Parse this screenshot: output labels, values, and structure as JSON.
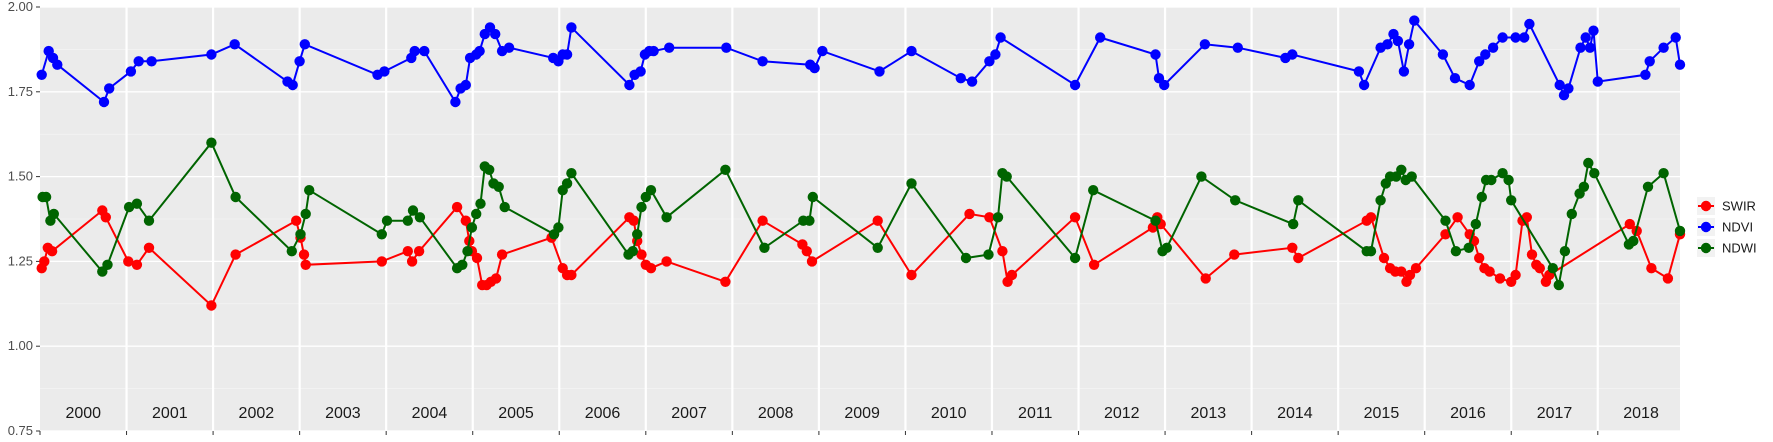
{
  "chart_data": {
    "type": "line",
    "title": "",
    "xlabel": "",
    "ylabel": "",
    "xlim": [
      2000.0,
      2018.95
    ],
    "ylim": [
      0.75,
      2.0
    ],
    "yticks": [
      "0.75",
      "1.00",
      "1.25",
      "1.50",
      "1.75",
      "2.00"
    ],
    "year_labels": [
      "2000",
      "2001",
      "2002",
      "2003",
      "2004",
      "2005",
      "2006",
      "2007",
      "2008",
      "2009",
      "2010",
      "2011",
      "2012",
      "2013",
      "2014",
      "2015",
      "2016",
      "2017",
      "2018"
    ],
    "grid": true,
    "legend_position": "right",
    "series": [
      {
        "name": "SWIR",
        "color": "#ff0000",
        "points": [
          [
            2000.02,
            1.23
          ],
          [
            2000.05,
            1.25
          ],
          [
            2000.09,
            1.29
          ],
          [
            2000.14,
            1.28
          ],
          [
            2000.72,
            1.4
          ],
          [
            2000.76,
            1.38
          ],
          [
            2001.02,
            1.25
          ],
          [
            2001.12,
            1.24
          ],
          [
            2001.26,
            1.29
          ],
          [
            2001.98,
            1.12
          ],
          [
            2002.26,
            1.27
          ],
          [
            2002.96,
            1.37
          ],
          [
            2003.01,
            1.32
          ],
          [
            2003.05,
            1.27
          ],
          [
            2003.07,
            1.24
          ],
          [
            2003.95,
            1.25
          ],
          [
            2004.25,
            1.28
          ],
          [
            2004.3,
            1.25
          ],
          [
            2004.38,
            1.28
          ],
          [
            2004.82,
            1.41
          ],
          [
            2004.92,
            1.37
          ],
          [
            2004.96,
            1.31
          ],
          [
            2004.99,
            1.28
          ],
          [
            2005.05,
            1.26
          ],
          [
            2005.11,
            1.18
          ],
          [
            2005.16,
            1.18
          ],
          [
            2005.21,
            1.19
          ],
          [
            2005.27,
            1.2
          ],
          [
            2005.34,
            1.27
          ],
          [
            2005.91,
            1.32
          ],
          [
            2006.04,
            1.23
          ],
          [
            2006.09,
            1.21
          ],
          [
            2006.14,
            1.21
          ],
          [
            2006.81,
            1.38
          ],
          [
            2006.86,
            1.37
          ],
          [
            2006.9,
            1.31
          ],
          [
            2006.95,
            1.27
          ],
          [
            2007.0,
            1.24
          ],
          [
            2007.06,
            1.23
          ],
          [
            2007.24,
            1.25
          ],
          [
            2007.92,
            1.19
          ],
          [
            2008.35,
            1.37
          ],
          [
            2008.81,
            1.3
          ],
          [
            2008.86,
            1.28
          ],
          [
            2008.92,
            1.25
          ],
          [
            2009.68,
            1.37
          ],
          [
            2010.07,
            1.21
          ],
          [
            2010.74,
            1.39
          ],
          [
            2010.97,
            1.38
          ],
          [
            2011.12,
            1.28
          ],
          [
            2011.18,
            1.19
          ],
          [
            2011.23,
            1.21
          ],
          [
            2011.96,
            1.38
          ],
          [
            2012.18,
            1.24
          ],
          [
            2012.86,
            1.35
          ],
          [
            2012.91,
            1.38
          ],
          [
            2012.95,
            1.36
          ],
          [
            2013.47,
            1.2
          ],
          [
            2013.8,
            1.27
          ],
          [
            2014.47,
            1.29
          ],
          [
            2014.54,
            1.26
          ],
          [
            2015.33,
            1.37
          ],
          [
            2015.38,
            1.38
          ],
          [
            2015.53,
            1.26
          ],
          [
            2015.6,
            1.23
          ],
          [
            2015.66,
            1.22
          ],
          [
            2015.73,
            1.22
          ],
          [
            2015.79,
            1.19
          ],
          [
            2015.83,
            1.21
          ],
          [
            2015.9,
            1.23
          ],
          [
            2016.24,
            1.33
          ],
          [
            2016.38,
            1.38
          ],
          [
            2016.52,
            1.33
          ],
          [
            2016.57,
            1.31
          ],
          [
            2016.63,
            1.26
          ],
          [
            2016.69,
            1.23
          ],
          [
            2016.75,
            1.22
          ],
          [
            2016.87,
            1.2
          ],
          [
            2017.0,
            1.19
          ],
          [
            2017.05,
            1.21
          ],
          [
            2017.13,
            1.37
          ],
          [
            2017.18,
            1.38
          ],
          [
            2017.24,
            1.27
          ],
          [
            2017.29,
            1.24
          ],
          [
            2017.33,
            1.23
          ],
          [
            2017.4,
            1.19
          ],
          [
            2017.44,
            1.21
          ],
          [
            2018.37,
            1.36
          ],
          [
            2018.45,
            1.34
          ],
          [
            2018.62,
            1.23
          ],
          [
            2018.81,
            1.2
          ],
          [
            2019.0,
            1.33
          ]
        ]
      },
      {
        "name": "NDVI",
        "color": "#0000ff",
        "points": [
          [
            2000.02,
            1.8
          ],
          [
            2000.1,
            1.87
          ],
          [
            2000.15,
            1.85
          ],
          [
            2000.2,
            1.83
          ],
          [
            2000.74,
            1.72
          ],
          [
            2000.8,
            1.76
          ],
          [
            2001.05,
            1.81
          ],
          [
            2001.14,
            1.84
          ],
          [
            2001.29,
            1.84
          ],
          [
            2001.98,
            1.86
          ],
          [
            2002.25,
            1.89
          ],
          [
            2002.86,
            1.78
          ],
          [
            2002.92,
            1.77
          ],
          [
            2003.0,
            1.84
          ],
          [
            2003.06,
            1.89
          ],
          [
            2003.9,
            1.8
          ],
          [
            2003.98,
            1.81
          ],
          [
            2004.29,
            1.85
          ],
          [
            2004.33,
            1.87
          ],
          [
            2004.44,
            1.87
          ],
          [
            2004.8,
            1.72
          ],
          [
            2004.86,
            1.76
          ],
          [
            2004.92,
            1.77
          ],
          [
            2004.97,
            1.85
          ],
          [
            2005.04,
            1.86
          ],
          [
            2005.08,
            1.87
          ],
          [
            2005.14,
            1.92
          ],
          [
            2005.2,
            1.94
          ],
          [
            2005.26,
            1.92
          ],
          [
            2005.34,
            1.87
          ],
          [
            2005.42,
            1.88
          ],
          [
            2005.93,
            1.85
          ],
          [
            2005.99,
            1.84
          ],
          [
            2006.04,
            1.86
          ],
          [
            2006.09,
            1.86
          ],
          [
            2006.14,
            1.94
          ],
          [
            2006.81,
            1.77
          ],
          [
            2006.87,
            1.8
          ],
          [
            2006.94,
            1.81
          ],
          [
            2006.99,
            1.86
          ],
          [
            2007.04,
            1.87
          ],
          [
            2007.09,
            1.87
          ],
          [
            2007.27,
            1.88
          ],
          [
            2007.93,
            1.88
          ],
          [
            2008.35,
            1.84
          ],
          [
            2008.9,
            1.83
          ],
          [
            2008.95,
            1.82
          ],
          [
            2009.04,
            1.87
          ],
          [
            2009.7,
            1.81
          ],
          [
            2010.07,
            1.87
          ],
          [
            2010.64,
            1.79
          ],
          [
            2010.77,
            1.78
          ],
          [
            2010.97,
            1.84
          ],
          [
            2011.04,
            1.86
          ],
          [
            2011.1,
            1.91
          ],
          [
            2011.96,
            1.77
          ],
          [
            2012.25,
            1.91
          ],
          [
            2012.89,
            1.86
          ],
          [
            2012.93,
            1.79
          ],
          [
            2012.99,
            1.77
          ],
          [
            2013.46,
            1.89
          ],
          [
            2013.84,
            1.88
          ],
          [
            2014.39,
            1.85
          ],
          [
            2014.47,
            1.86
          ],
          [
            2015.24,
            1.81
          ],
          [
            2015.3,
            1.77
          ],
          [
            2015.49,
            1.88
          ],
          [
            2015.57,
            1.89
          ],
          [
            2015.64,
            1.92
          ],
          [
            2015.69,
            1.9
          ],
          [
            2015.76,
            1.81
          ],
          [
            2015.82,
            1.89
          ],
          [
            2015.88,
            1.96
          ],
          [
            2016.21,
            1.86
          ],
          [
            2016.35,
            1.79
          ],
          [
            2016.52,
            1.77
          ],
          [
            2016.63,
            1.84
          ],
          [
            2016.7,
            1.86
          ],
          [
            2016.79,
            1.88
          ],
          [
            2016.9,
            1.91
          ],
          [
            2017.05,
            1.91
          ],
          [
            2017.15,
            1.91
          ],
          [
            2017.21,
            1.95
          ],
          [
            2017.56,
            1.77
          ],
          [
            2017.61,
            1.74
          ],
          [
            2017.66,
            1.76
          ],
          [
            2017.8,
            1.88
          ],
          [
            2017.86,
            1.91
          ],
          [
            2017.91,
            1.88
          ],
          [
            2017.95,
            1.93
          ],
          [
            2018.0,
            1.78
          ],
          [
            2018.55,
            1.8
          ],
          [
            2018.6,
            1.84
          ],
          [
            2018.76,
            1.88
          ],
          [
            2018.9,
            1.91
          ],
          [
            2019.0,
            1.83
          ]
        ]
      },
      {
        "name": "NDWI",
        "color": "#006400",
        "points": [
          [
            2000.03,
            1.44
          ],
          [
            2000.07,
            1.44
          ],
          [
            2000.12,
            1.37
          ],
          [
            2000.16,
            1.39
          ],
          [
            2000.72,
            1.22
          ],
          [
            2000.78,
            1.24
          ],
          [
            2001.03,
            1.41
          ],
          [
            2001.12,
            1.42
          ],
          [
            2001.26,
            1.37
          ],
          [
            2001.98,
            1.6
          ],
          [
            2002.26,
            1.44
          ],
          [
            2002.91,
            1.28
          ],
          [
            2003.01,
            1.33
          ],
          [
            2003.07,
            1.39
          ],
          [
            2003.11,
            1.46
          ],
          [
            2003.95,
            1.33
          ],
          [
            2004.01,
            1.37
          ],
          [
            2004.25,
            1.37
          ],
          [
            2004.31,
            1.4
          ],
          [
            2004.39,
            1.38
          ],
          [
            2004.82,
            1.23
          ],
          [
            2004.88,
            1.24
          ],
          [
            2004.94,
            1.28
          ],
          [
            2004.99,
            1.35
          ],
          [
            2005.04,
            1.39
          ],
          [
            2005.09,
            1.42
          ],
          [
            2005.14,
            1.53
          ],
          [
            2005.19,
            1.52
          ],
          [
            2005.24,
            1.48
          ],
          [
            2005.3,
            1.47
          ],
          [
            2005.37,
            1.41
          ],
          [
            2005.94,
            1.33
          ],
          [
            2005.99,
            1.35
          ],
          [
            2006.04,
            1.46
          ],
          [
            2006.09,
            1.48
          ],
          [
            2006.14,
            1.51
          ],
          [
            2006.8,
            1.27
          ],
          [
            2006.85,
            1.28
          ],
          [
            2006.9,
            1.33
          ],
          [
            2006.95,
            1.41
          ],
          [
            2007.0,
            1.44
          ],
          [
            2007.06,
            1.46
          ],
          [
            2007.24,
            1.38
          ],
          [
            2007.92,
            1.52
          ],
          [
            2008.37,
            1.29
          ],
          [
            2008.82,
            1.37
          ],
          [
            2008.89,
            1.37
          ],
          [
            2008.93,
            1.44
          ],
          [
            2009.68,
            1.29
          ],
          [
            2010.07,
            1.48
          ],
          [
            2010.7,
            1.26
          ],
          [
            2010.96,
            1.27
          ],
          [
            2011.07,
            1.38
          ],
          [
            2011.12,
            1.51
          ],
          [
            2011.17,
            1.5
          ],
          [
            2011.96,
            1.26
          ],
          [
            2012.17,
            1.46
          ],
          [
            2012.89,
            1.37
          ],
          [
            2012.97,
            1.28
          ],
          [
            2013.02,
            1.29
          ],
          [
            2013.42,
            1.5
          ],
          [
            2013.81,
            1.43
          ],
          [
            2014.48,
            1.36
          ],
          [
            2014.54,
            1.43
          ],
          [
            2015.33,
            1.28
          ],
          [
            2015.38,
            1.28
          ],
          [
            2015.49,
            1.43
          ],
          [
            2015.55,
            1.48
          ],
          [
            2015.6,
            1.5
          ],
          [
            2015.67,
            1.5
          ],
          [
            2015.73,
            1.52
          ],
          [
            2015.78,
            1.49
          ],
          [
            2015.85,
            1.5
          ],
          [
            2016.24,
            1.37
          ],
          [
            2016.36,
            1.28
          ],
          [
            2016.51,
            1.29
          ],
          [
            2016.59,
            1.36
          ],
          [
            2016.66,
            1.44
          ],
          [
            2016.71,
            1.49
          ],
          [
            2016.77,
            1.49
          ],
          [
            2016.9,
            1.51
          ],
          [
            2016.97,
            1.49
          ],
          [
            2017.0,
            1.43
          ],
          [
            2017.48,
            1.23
          ],
          [
            2017.55,
            1.18
          ],
          [
            2017.62,
            1.28
          ],
          [
            2017.7,
            1.39
          ],
          [
            2017.79,
            1.45
          ],
          [
            2017.84,
            1.47
          ],
          [
            2017.89,
            1.54
          ],
          [
            2017.96,
            1.51
          ],
          [
            2018.36,
            1.3
          ],
          [
            2018.41,
            1.31
          ],
          [
            2018.58,
            1.47
          ],
          [
            2018.76,
            1.51
          ],
          [
            2019.0,
            1.34
          ]
        ]
      }
    ]
  }
}
